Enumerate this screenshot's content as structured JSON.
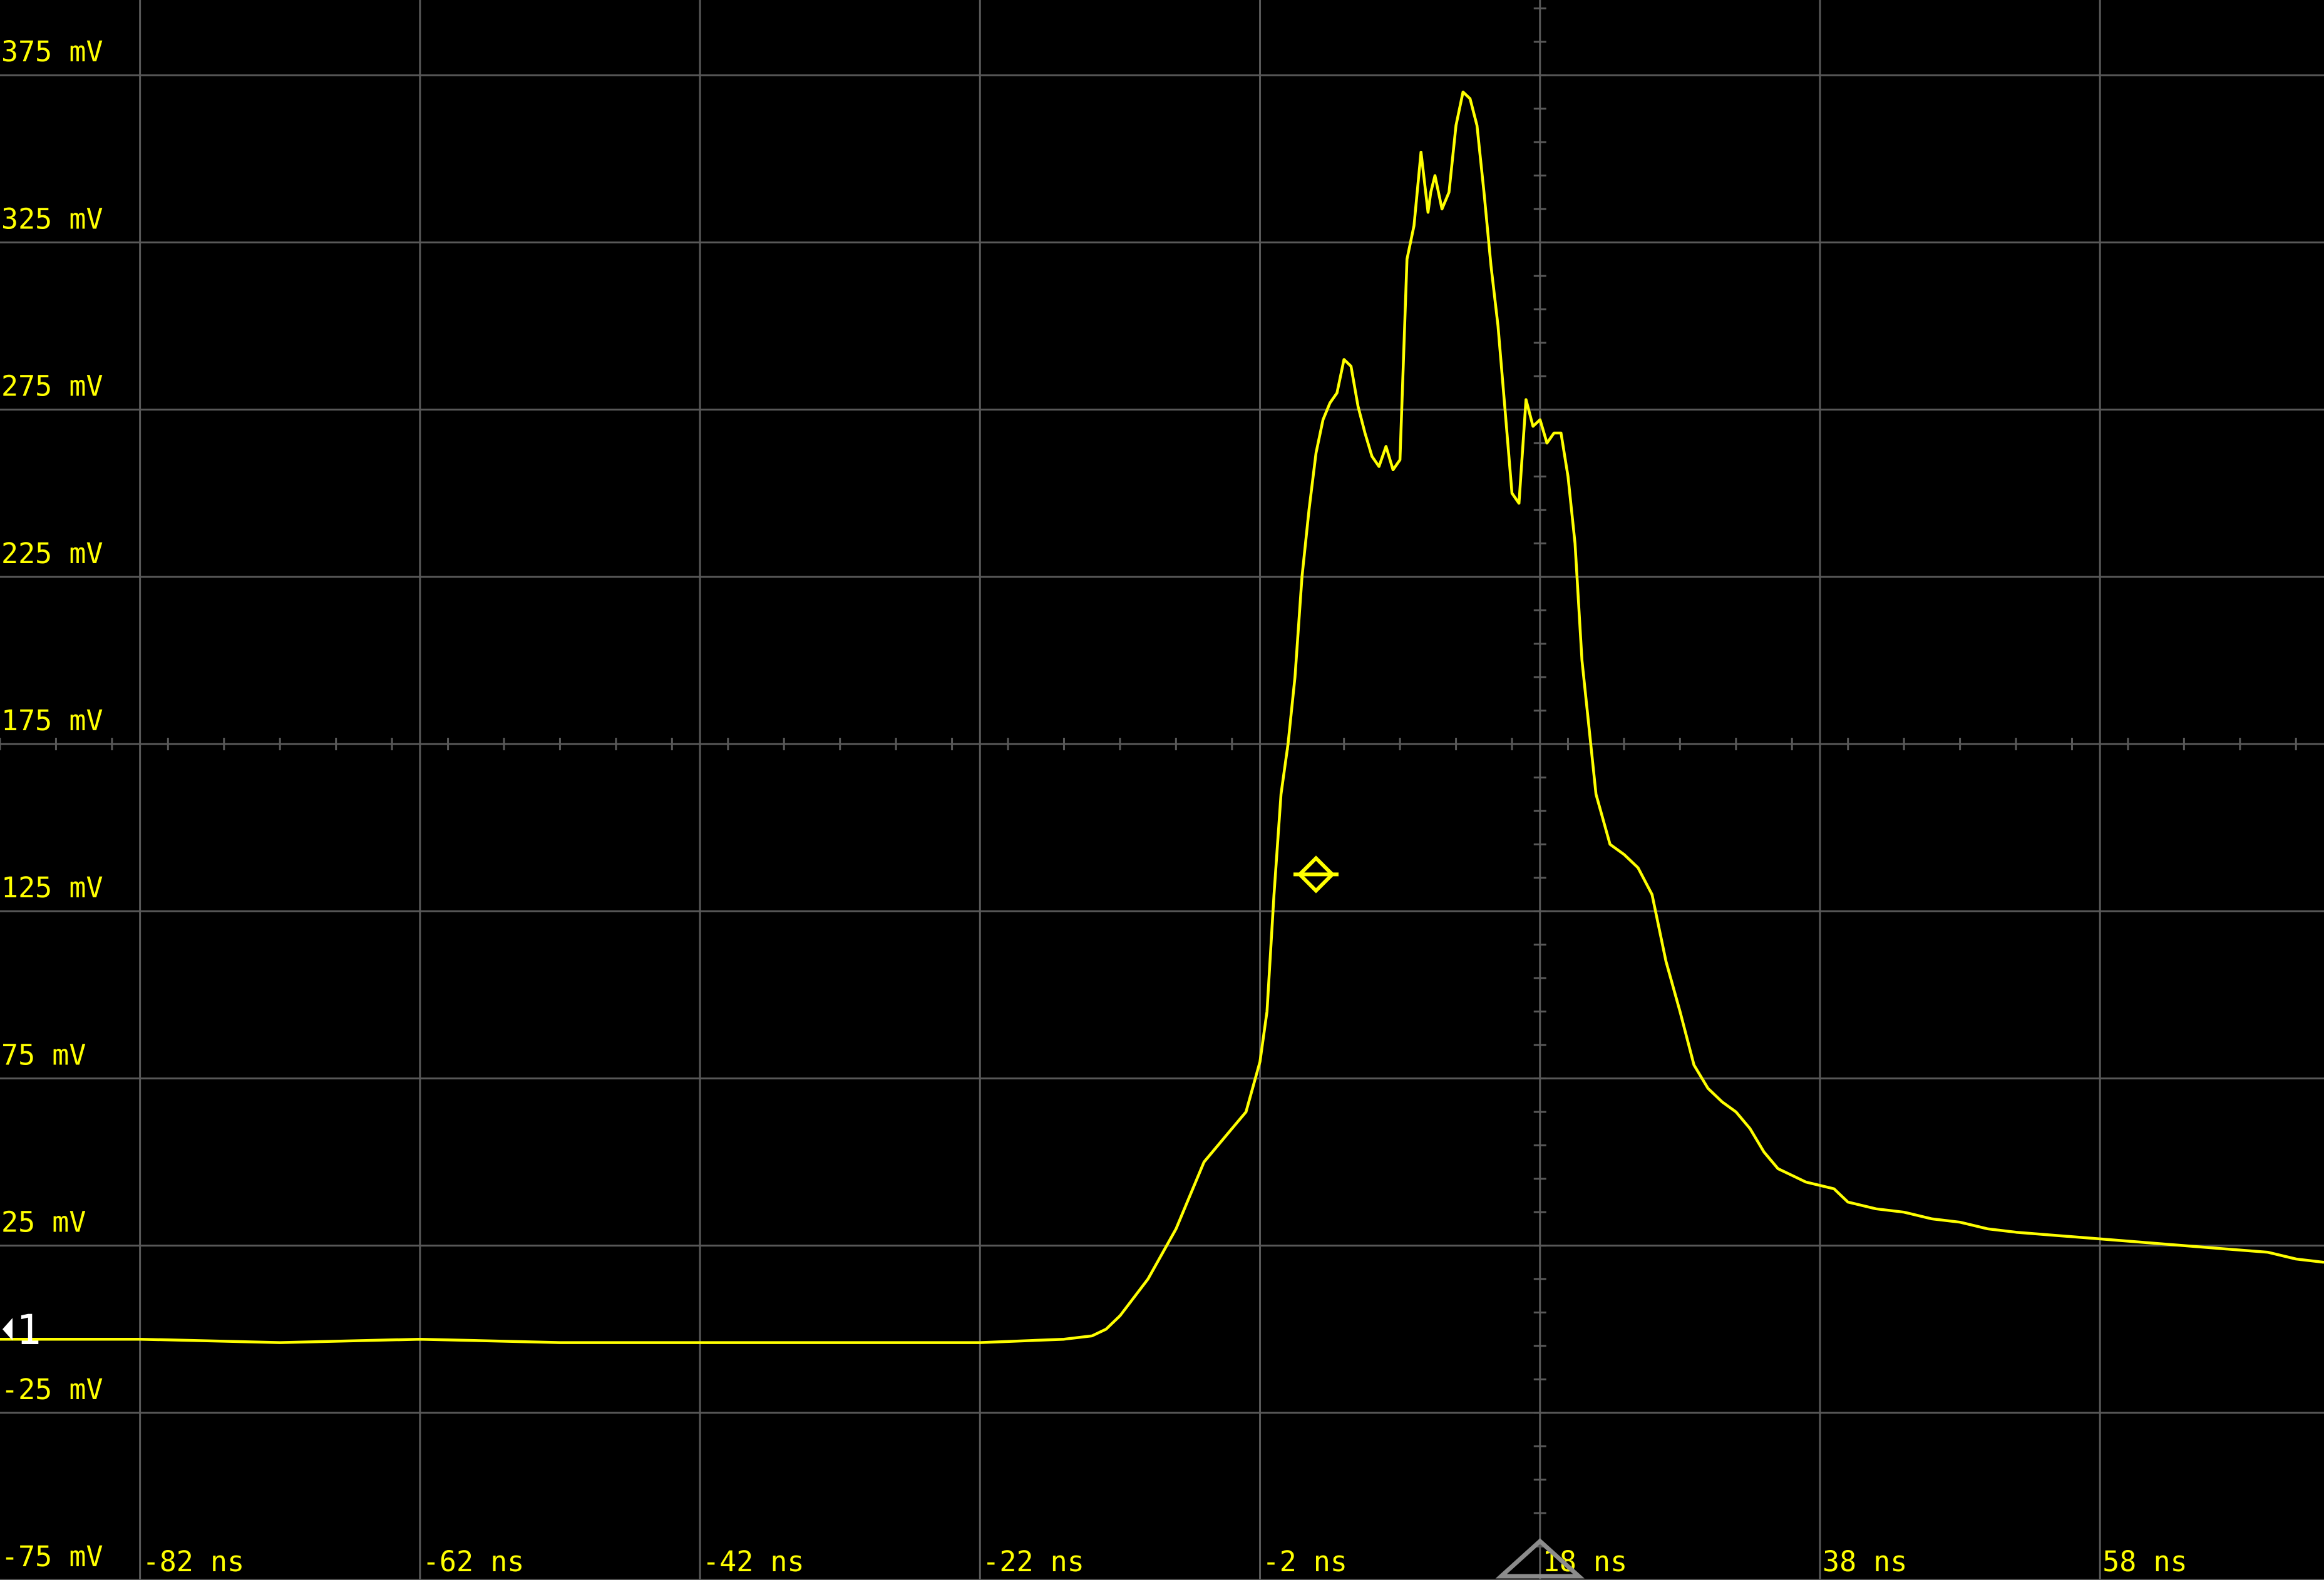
{
  "chart_data": {
    "type": "line",
    "title": "",
    "xlabel": "",
    "ylabel": "",
    "x_unit": "ns",
    "y_unit": "mV",
    "xlim": [
      -92,
      74
    ],
    "ylim": [
      -75,
      397.5
    ],
    "grid": true,
    "y_tick_labels": [
      "375 mV",
      "325 mV",
      "275 mV",
      "225 mV",
      "175 mV",
      "125 mV",
      "75 mV",
      "25 mV",
      "-25 mV",
      "-75 mV"
    ],
    "y_tick_values": [
      375,
      325,
      275,
      225,
      175,
      125,
      75,
      25,
      -25,
      -75
    ],
    "x_tick_labels": [
      "-82 ns",
      "-62 ns",
      "-42 ns",
      "-22 ns",
      "-2 ns",
      "18 ns",
      "38 ns",
      "58 ns"
    ],
    "x_tick_values": [
      -82,
      -62,
      -42,
      -22,
      -2,
      18,
      38,
      58
    ],
    "center": {
      "time_ns": 18,
      "voltage_mv": 175
    },
    "channel_marker": "1",
    "trigger_point": {
      "time_ns": 2,
      "voltage_mv": 136
    },
    "colors": {
      "trace": "#ffff00",
      "grid": "#595959",
      "background": "#000000",
      "ground_marker": "#ffffff",
      "trigger_marker": "#8c8c8c"
    },
    "series": [
      {
        "x": [
          -92,
          -82,
          -72,
          -62,
          -52,
          -42,
          -32,
          -22,
          -16,
          -14,
          -13,
          -12,
          -10,
          -8,
          -6,
          -4,
          -3,
          -2,
          -1.5,
          -1,
          -0.5,
          0,
          0.5,
          1,
          1.5,
          2,
          2.5,
          3,
          3.5,
          4,
          4.5,
          5,
          5.5,
          6,
          6.5,
          7,
          7.5,
          8,
          8.5,
          9,
          9.5,
          10,
          10.2,
          10.5,
          11,
          11.5,
          12,
          12.5,
          13,
          13.5,
          14,
          14.5,
          15,
          15.5,
          16,
          16.5,
          17,
          17.5,
          18,
          18.5,
          19,
          19.5,
          20,
          20.5,
          21,
          22,
          23,
          24,
          25,
          26,
          27,
          28,
          29,
          30,
          31,
          32,
          33,
          34,
          35,
          36,
          37,
          38,
          39,
          40,
          42,
          44,
          46,
          48,
          50,
          52,
          55,
          58,
          61,
          64,
          67,
          70,
          72,
          74
        ],
        "y": [
          -3,
          -3,
          -4,
          -3,
          -4,
          -4,
          -4,
          -4,
          -3,
          -2,
          0,
          4,
          15,
          30,
          50,
          60,
          65,
          80,
          95,
          130,
          160,
          175,
          195,
          225,
          245,
          262,
          272,
          277,
          280,
          290,
          288,
          276,
          268,
          261,
          258,
          264,
          257,
          260,
          320,
          330,
          352,
          334,
          340,
          345,
          335,
          340,
          360,
          370,
          368,
          360,
          340,
          318,
          300,
          275,
          250,
          247,
          278,
          270,
          272,
          265,
          268,
          268,
          255,
          235,
          200,
          160,
          145,
          142,
          138,
          130,
          110,
          95,
          79,
          72,
          68,
          65,
          60,
          53,
          48,
          46,
          44,
          43,
          42,
          38,
          36,
          35,
          33,
          32,
          30,
          29,
          28,
          27,
          26,
          25,
          24,
          23,
          21,
          20
        ]
      }
    ]
  }
}
